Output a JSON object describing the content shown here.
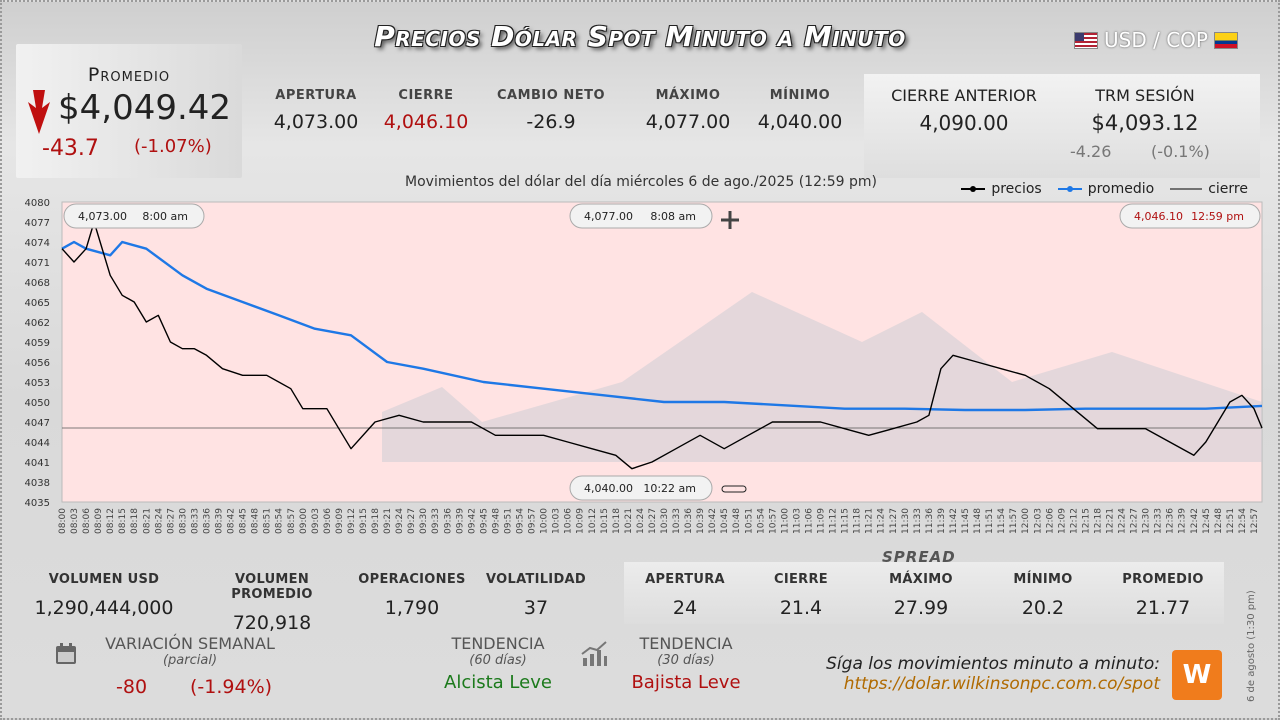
{
  "title": "Precios Dólar Spot Minuto a Minuto",
  "pair": "USD / COP",
  "promedio": {
    "label": "Promedio",
    "value": "$4,049.42",
    "change": "-43.7",
    "change_pct": "(-1.07%)",
    "direction": "down"
  },
  "stats": {
    "apertura": {
      "label": "APERTURA",
      "value": "4,073.00"
    },
    "cierre": {
      "label": "CIERRE",
      "value": "4,046.10"
    },
    "cambio_neto": {
      "label": "CAMBIO NETO",
      "value": "-26.9"
    },
    "maximo": {
      "label": "MÁXIMO",
      "value": "4,077.00"
    },
    "minimo": {
      "label": "MÍNIMO",
      "value": "4,040.00"
    }
  },
  "cierre_anterior": {
    "label": "CIERRE ANTERIOR",
    "value": "4,090.00"
  },
  "trm": {
    "label": "TRM SESIÓN",
    "value": "$4,093.12",
    "change": "-4.26",
    "change_pct": "(-0.1%)"
  },
  "subtitle": "Movimientos del dólar del día miércoles 6 de ago./2025 (12:59 pm)",
  "legend": {
    "precios": "precios",
    "promedio": "promedio",
    "cierre": "cierre"
  },
  "callouts": {
    "open": {
      "value": "4,073.00",
      "time": "8:00 am"
    },
    "max": {
      "value": "4,077.00",
      "time": "8:08 am"
    },
    "close": {
      "value": "4,046.10",
      "time": "12:59 pm"
    },
    "min": {
      "value": "4,040.00",
      "time": "10:22 am"
    }
  },
  "bottom": {
    "volumen_usd": {
      "label": "VOLUMEN USD",
      "value": "1,290,444,000"
    },
    "volumen_promedio": {
      "label": "VOLUMEN PROMEDIO",
      "value": "720,918"
    },
    "operaciones": {
      "label": "OPERACIONES",
      "value": "1,790"
    },
    "volatilidad": {
      "label": "VOLATILIDAD",
      "value": "37"
    }
  },
  "spread": {
    "title": "SPREAD",
    "apertura": {
      "label": "APERTURA",
      "value": "24"
    },
    "cierre": {
      "label": "CIERRE",
      "value": "21.4"
    },
    "maximo": {
      "label": "MÁXIMO",
      "value": "27.99"
    },
    "minimo": {
      "label": "MÍNIMO",
      "value": "20.2"
    },
    "promedio": {
      "label": "PROMEDIO",
      "value": "21.77"
    }
  },
  "variacion": {
    "label": "VARIACIÓN SEMANAL",
    "sub": "(parcial)",
    "change": "-80",
    "change_pct": "(-1.94%)"
  },
  "tendencia60": {
    "label": "TENDENCIA",
    "sub": "(60 días)",
    "value": "Alcista Leve"
  },
  "tendencia30": {
    "label": "TENDENCIA",
    "sub": "(30 días)",
    "value": "Bajista Leve"
  },
  "cta": {
    "text": "Síga los movimientos minuto a minuto:",
    "url": "https://dolar.wilkinsonpc.com.co/spot"
  },
  "footer_date": "6 de agosto (1:30 pm)",
  "colors": {
    "down": "#b01010",
    "up": "#1c7a1c",
    "avg_line": "#1e78e6",
    "price_line": "#000000",
    "accent": "#f07c1c"
  },
  "chart_data": {
    "type": "line",
    "ylim": [
      4035,
      4080
    ],
    "yticks": [
      4035,
      4038,
      4041,
      4044,
      4047,
      4050,
      4053,
      4056,
      4059,
      4062,
      4065,
      4068,
      4071,
      4074,
      4077,
      4080
    ],
    "x_start": "08:00",
    "x_end": "12:59",
    "xtick_labels": [
      "08:00",
      "08:03",
      "08:06",
      "08:09",
      "08:12",
      "08:15",
      "08:18",
      "08:21",
      "08:24",
      "08:27",
      "08:30",
      "08:33",
      "08:36",
      "08:39",
      "08:42",
      "08:45",
      "08:48",
      "08:51",
      "08:54",
      "08:57",
      "09:00",
      "09:03",
      "09:06",
      "09:09",
      "09:12",
      "09:15",
      "09:18",
      "09:21",
      "09:24",
      "09:27",
      "09:30",
      "09:33",
      "09:36",
      "09:39",
      "09:42",
      "09:45",
      "09:48",
      "09:51",
      "09:54",
      "09:57",
      "10:00",
      "10:03",
      "10:06",
      "10:09",
      "10:12",
      "10:15",
      "10:18",
      "10:21",
      "10:24",
      "10:27",
      "10:30",
      "10:33",
      "10:36",
      "10:39",
      "10:42",
      "10:45",
      "10:48",
      "10:51",
      "10:54",
      "10:57",
      "11:00",
      "11:03",
      "11:06",
      "11:09",
      "11:12",
      "11:15",
      "11:18",
      "11:21",
      "11:24",
      "11:27",
      "11:30",
      "11:33",
      "11:36",
      "11:39",
      "11:42",
      "11:45",
      "11:48",
      "11:51",
      "11:54",
      "11:57",
      "12:00",
      "12:03",
      "12:06",
      "12:09",
      "12:12",
      "12:15",
      "12:18",
      "12:21",
      "12:24",
      "12:27",
      "12:30",
      "12:33",
      "12:36",
      "12:39",
      "12:42",
      "12:45",
      "12:48",
      "12:51",
      "12:54",
      "12:57"
    ],
    "previous_close": 4046.1,
    "series": [
      {
        "name": "precios",
        "x": [
          "08:00",
          "08:03",
          "08:06",
          "08:08",
          "08:12",
          "08:15",
          "08:18",
          "08:21",
          "08:24",
          "08:27",
          "08:30",
          "08:33",
          "08:36",
          "08:40",
          "08:45",
          "08:51",
          "08:57",
          "09:00",
          "09:06",
          "09:09",
          "09:12",
          "09:18",
          "09:24",
          "09:30",
          "09:36",
          "09:42",
          "09:48",
          "09:54",
          "10:00",
          "10:06",
          "10:12",
          "10:18",
          "10:22",
          "10:27",
          "10:33",
          "10:39",
          "10:45",
          "10:51",
          "10:57",
          "11:03",
          "11:09",
          "11:15",
          "11:21",
          "11:27",
          "11:33",
          "11:36",
          "11:39",
          "11:42",
          "11:48",
          "11:54",
          "12:00",
          "12:06",
          "12:12",
          "12:18",
          "12:24",
          "12:30",
          "12:36",
          "12:42",
          "12:45",
          "12:48",
          "12:51",
          "12:54",
          "12:57",
          "12:59"
        ],
        "y": [
          4073,
          4071,
          4073,
          4077,
          4069,
          4066,
          4065,
          4062,
          4063,
          4059,
          4058,
          4058,
          4057,
          4055,
          4054,
          4054,
          4052,
          4049,
          4049,
          4046,
          4043,
          4047,
          4048,
          4047,
          4047,
          4047,
          4045,
          4045,
          4045,
          4044,
          4043,
          4042,
          4040,
          4041,
          4043,
          4045,
          4043,
          4045,
          4047,
          4047,
          4047,
          4046,
          4045,
          4046,
          4047,
          4048,
          4055,
          4057,
          4056,
          4055,
          4054,
          4052,
          4049,
          4046,
          4046,
          4046,
          4044,
          4042,
          4044,
          4047,
          4050,
          4051,
          4049,
          4046.1
        ]
      },
      {
        "name": "promedio",
        "x": [
          "08:00",
          "08:03",
          "08:06",
          "08:12",
          "08:15",
          "08:21",
          "08:30",
          "08:36",
          "08:45",
          "08:54",
          "09:03",
          "09:12",
          "09:21",
          "09:30",
          "09:45",
          "10:00",
          "10:15",
          "10:30",
          "10:45",
          "11:00",
          "11:15",
          "11:30",
          "11:45",
          "12:00",
          "12:15",
          "12:30",
          "12:45",
          "12:59"
        ],
        "y": [
          4073,
          4074,
          4073,
          4072,
          4074,
          4073,
          4069,
          4067,
          4065,
          4063,
          4061,
          4060,
          4056,
          4055,
          4053,
          4052,
          4051,
          4050,
          4050,
          4049.5,
          4049,
          4049,
          4048.8,
          4048.8,
          4049,
          4049,
          4049,
          4049.42
        ]
      }
    ]
  }
}
